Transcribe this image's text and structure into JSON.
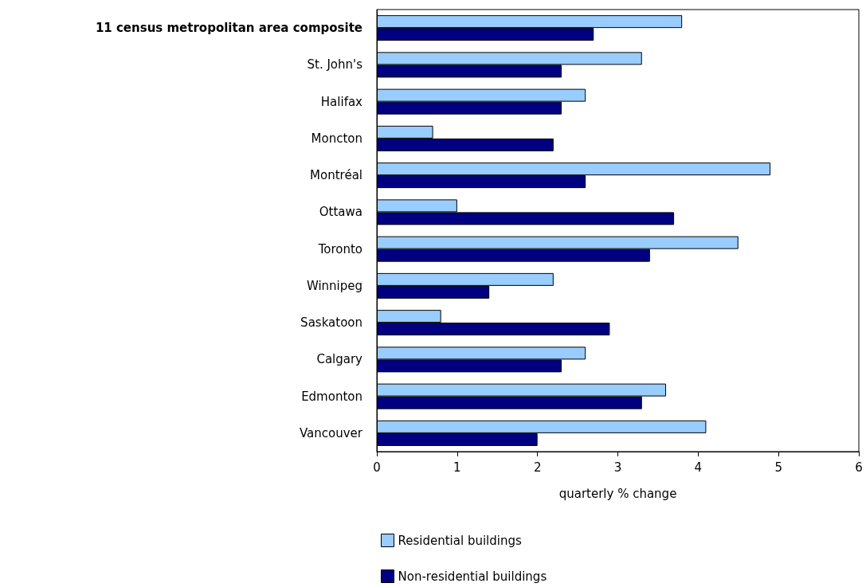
{
  "chart_data": {
    "type": "bar",
    "orientation": "horizontal",
    "xlabel": "quarterly % change",
    "categories": [
      "11 census metropolitan area composite",
      "St. John's",
      "Halifax",
      "Moncton",
      "Montréal",
      "Ottawa",
      "Toronto",
      "Winnipeg",
      "Saskatoon",
      "Calgary",
      "Edmonton",
      "Vancouver"
    ],
    "series": [
      {
        "name": "Residential buildings",
        "color": "#99ccff",
        "values": [
          3.8,
          3.3,
          2.6,
          0.7,
          4.9,
          1.0,
          4.5,
          2.2,
          0.8,
          2.6,
          3.6,
          4.1
        ]
      },
      {
        "name": "Non-residential buildings",
        "color": "#000080",
        "values": [
          2.7,
          2.3,
          2.3,
          2.2,
          2.6,
          3.7,
          3.4,
          1.4,
          2.9,
          2.3,
          3.3,
          2.0
        ]
      }
    ],
    "xlim": [
      0,
      6
    ],
    "xticks": [
      0,
      1,
      2,
      3,
      4,
      5,
      6
    ],
    "grid": false,
    "legend": "bottom"
  }
}
